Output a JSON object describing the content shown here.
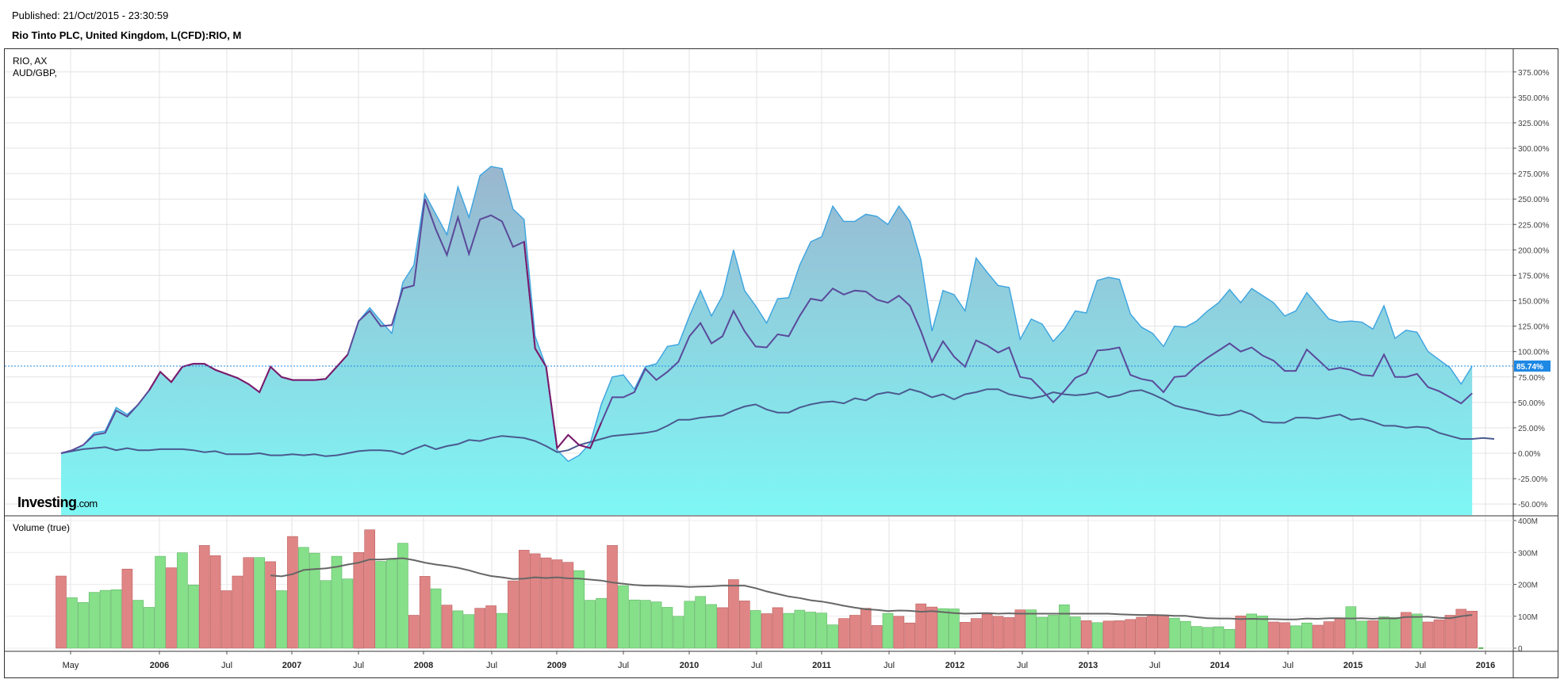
{
  "header": {
    "published": "Published: 21/Oct/2015 - 23:30:59",
    "chart_title": "Rio Tinto PLC, United Kingdom, L(CFD):RIO, M"
  },
  "legend": [
    "RIO, AX",
    "AUD/GBP,"
  ],
  "volume_label": "Volume (true)",
  "logo": {
    "main": "Investing",
    "suffix": ".com"
  },
  "current_value_label": "85.74%",
  "colors": {
    "area_stroke": "#3ba3e0",
    "area_fill_top": "#9ab6cf",
    "area_fill_bottom": "#7ef7f5",
    "line_rio_ax": "#5a4a9a",
    "line_audgbp": "#4a5a90",
    "line_overlap": "#7b1a6b",
    "vol_up": "#86e08a",
    "vol_down": "#e08585",
    "vol_ma": "#666666",
    "current_badge": "#1e88e5"
  },
  "chart_data": [
    {
      "type": "area",
      "title": "Rio Tinto PLC, United Kingdom, L(CFD):RIO, M",
      "ylim": [
        -60,
        395
      ],
      "y_ticks": [
        "375.00%",
        "350.00%",
        "325.00%",
        "300.00%",
        "275.00%",
        "250.00%",
        "225.00%",
        "200.00%",
        "175.00%",
        "150.00%",
        "125.00%",
        "100.00%",
        "75.00%",
        "50.00%",
        "25.00%",
        "0.00%",
        "-25.00%",
        "-50.00%"
      ],
      "x_ticks": [
        {
          "label": "May",
          "year": false
        },
        {
          "label": "2006",
          "year": true
        },
        {
          "label": "Jul",
          "year": false
        },
        {
          "label": "2007",
          "year": true
        },
        {
          "label": "Jul",
          "year": false
        },
        {
          "label": "2008",
          "year": true
        },
        {
          "label": "Jul",
          "year": false
        },
        {
          "label": "2009",
          "year": true
        },
        {
          "label": "Jul",
          "year": false
        },
        {
          "label": "2010",
          "year": true
        },
        {
          "label": "Jul",
          "year": false
        },
        {
          "label": "2011",
          "year": true
        },
        {
          "label": "Jul",
          "year": false
        },
        {
          "label": "2012",
          "year": true
        },
        {
          "label": "Jul",
          "year": false
        },
        {
          "label": "2013",
          "year": true
        },
        {
          "label": "Jul",
          "year": false
        },
        {
          "label": "2014",
          "year": true
        },
        {
          "label": "Jul",
          "year": false
        },
        {
          "label": "2015",
          "year": true
        },
        {
          "label": "Jul",
          "year": false
        },
        {
          "label": "2016",
          "year": true
        }
      ],
      "current_value": 85.74,
      "series": [
        {
          "name": "Rio Tinto PLC, United Kingdom, L(CFD):RIO, M",
          "values": [
            0,
            3,
            8,
            20,
            22,
            45,
            38,
            48,
            62,
            80,
            70,
            85,
            88,
            88,
            82,
            78,
            74,
            68,
            60,
            85,
            75,
            72,
            72,
            72,
            73,
            85,
            97,
            130,
            143,
            130,
            118,
            168,
            185,
            255,
            235,
            215,
            262,
            232,
            273,
            282,
            280,
            240,
            230,
            115,
            85,
            3,
            -8,
            -2,
            10,
            48,
            75,
            77,
            63,
            85,
            88,
            105,
            107,
            135,
            160,
            135,
            155,
            200,
            160,
            145,
            128,
            152,
            153,
            185,
            208,
            213,
            243,
            228,
            228,
            235,
            233,
            225,
            243,
            228,
            190,
            120,
            160,
            156,
            140,
            192,
            178,
            165,
            163,
            112,
            132,
            127,
            110,
            122,
            140,
            138,
            170,
            173,
            171,
            137,
            124,
            118,
            105,
            125,
            124,
            130,
            140,
            148,
            161,
            148,
            162,
            155,
            148,
            135,
            140,
            158,
            145,
            132,
            129,
            130,
            129,
            122,
            145,
            113,
            121,
            119,
            100,
            92,
            84,
            68,
            85.74
          ]
        },
        {
          "name": "RIO, AX",
          "values": [
            0,
            3,
            8,
            18,
            20,
            42,
            36,
            48,
            62,
            80,
            70,
            85,
            88,
            88,
            82,
            78,
            74,
            68,
            60,
            85,
            75,
            72,
            72,
            72,
            73,
            85,
            97,
            130,
            140,
            125,
            126,
            162,
            165,
            250,
            220,
            195,
            232,
            196,
            230,
            234,
            228,
            203,
            208,
            103,
            85,
            5,
            18,
            8,
            5,
            30,
            55,
            55,
            60,
            83,
            72,
            80,
            90,
            115,
            128,
            108,
            115,
            140,
            120,
            105,
            104,
            117,
            115,
            135,
            152,
            150,
            162,
            156,
            160,
            159,
            151,
            148,
            155,
            145,
            120,
            90,
            110,
            95,
            85,
            111,
            106,
            99,
            104,
            75,
            73,
            62,
            50,
            61,
            74,
            79,
            101,
            102,
            104,
            77,
            73,
            71,
            60,
            75,
            76,
            86,
            94,
            101,
            108,
            100,
            104,
            96,
            91,
            81,
            81,
            102,
            92,
            82,
            84,
            82,
            77,
            76,
            97,
            75,
            75,
            78,
            65,
            61,
            55,
            49,
            59
          ]
        },
        {
          "name": "AUD/GBP",
          "values": [
            0,
            2,
            4,
            5,
            6,
            3,
            5,
            3,
            3,
            4,
            4,
            4,
            3,
            1,
            2,
            -1,
            -1,
            -1,
            0,
            -2,
            -2,
            -1,
            -2,
            -1,
            -3,
            -2,
            0,
            2,
            3,
            3,
            2,
            -1,
            4,
            8,
            4,
            7,
            9,
            13,
            12,
            15,
            17,
            16,
            15,
            12,
            7,
            1,
            3,
            8,
            11,
            14,
            17,
            18,
            19,
            20,
            22,
            27,
            33,
            33,
            35,
            36,
            37,
            42,
            46,
            48,
            43,
            40,
            40,
            45,
            48,
            50,
            51,
            49,
            54,
            52,
            58,
            60,
            58,
            63,
            60,
            55,
            58,
            53,
            58,
            60,
            63,
            63,
            58,
            56,
            54,
            56,
            60,
            58,
            57,
            58,
            60,
            55,
            57,
            61,
            62,
            58,
            53,
            47,
            44,
            42,
            39,
            37,
            38,
            42,
            38,
            31,
            30,
            30,
            35,
            35,
            34,
            36,
            38,
            33,
            34,
            31,
            27,
            27,
            25,
            26,
            25,
            20,
            17,
            14,
            14,
            15,
            14
          ]
        }
      ]
    },
    {
      "type": "bar",
      "title": "Volume (true)",
      "ylim": [
        0,
        400
      ],
      "y_unit": "M",
      "y_ticks": [
        "400M",
        "300M",
        "200M",
        "100M",
        "0"
      ],
      "series": [
        {
          "name": "Volume (true)",
          "values": [
            226,
            158,
            143,
            175,
            181,
            183,
            248,
            150,
            128,
            288,
            252,
            299,
            198,
            322,
            290,
            180,
            226,
            284,
            284,
            271,
            180,
            350,
            316,
            298,
            212,
            288,
            217,
            300,
            371,
            272,
            278,
            329,
            103,
            225,
            186,
            135,
            117,
            105,
            125,
            133,
            109,
            211,
            307,
            296,
            283,
            277,
            269,
            243,
            150,
            156,
            322,
            196,
            151,
            150,
            145,
            128,
            100,
            147,
            162,
            137,
            127,
            215,
            148,
            118,
            108,
            127,
            109,
            119,
            113,
            110,
            73,
            93,
            103,
            125,
            71,
            109,
            100,
            79,
            139,
            129,
            124,
            123,
            81,
            93,
            106,
            100,
            96,
            120,
            120,
            97,
            103,
            136,
            98,
            86,
            80,
            85,
            86,
            90,
            97,
            104,
            104,
            94,
            84,
            68,
            65,
            67,
            59,
            101,
            107,
            101,
            82,
            80,
            70,
            79,
            72,
            83,
            92,
            130,
            85,
            86,
            98,
            96,
            112,
            107,
            82,
            89,
            103,
            122,
            116
          ]
        },
        {
          "name": "Volume direction (1 = up, 0 = down)",
          "values": [
            0,
            1,
            1,
            1,
            1,
            1,
            0,
            1,
            1,
            1,
            0,
            1,
            1,
            0,
            0,
            0,
            0,
            0,
            1,
            0,
            1,
            0,
            1,
            1,
            1,
            1,
            1,
            0,
            0,
            1,
            1,
            1,
            0,
            0,
            1,
            0,
            1,
            1,
            0,
            0,
            1,
            0,
            0,
            0,
            0,
            0,
            0,
            1,
            1,
            1,
            0,
            1,
            1,
            1,
            1,
            1,
            1,
            1,
            1,
            1,
            0,
            0,
            0,
            1,
            0,
            0,
            1,
            1,
            1,
            1,
            1,
            0,
            0,
            0,
            0,
            1,
            0,
            0,
            0,
            0,
            1,
            1,
            0,
            0,
            0,
            0,
            0,
            0,
            1,
            1,
            1,
            1,
            1,
            0,
            1,
            0,
            0,
            0,
            0,
            0,
            0,
            1,
            1,
            1,
            1,
            1,
            1,
            0,
            1,
            1,
            0,
            0,
            1,
            1,
            0,
            0,
            0,
            1,
            1,
            0,
            1,
            1,
            0,
            1,
            0,
            0,
            0,
            0,
            0
          ]
        },
        {
          "name": "Volume moving average",
          "values": [
            null,
            null,
            null,
            null,
            null,
            null,
            null,
            null,
            null,
            null,
            null,
            null,
            null,
            null,
            null,
            null,
            null,
            null,
            null,
            null,
            null,
            null,
            null,
            null,
            null,
            null,
            null,
            null,
            null,
            null,
            null,
            null,
            null,
            null,
            null,
            null,
            null,
            null,
            null,
            null,
            null,
            null,
            null,
            null,
            null,
            null,
            null,
            null,
            null,
            null,
            null,
            null,
            null,
            null,
            null,
            null,
            null,
            null,
            null,
            null,
            null,
            null,
            null,
            null,
            null,
            null,
            null,
            null,
            null,
            null,
            null,
            null,
            null,
            null,
            null,
            null,
            null,
            null,
            null,
            null,
            null,
            null,
            null,
            null,
            null,
            null,
            null,
            null,
            null,
            null,
            null,
            null,
            null,
            null,
            null,
            null,
            null,
            null,
            null,
            null,
            null,
            null,
            null,
            null,
            null,
            null,
            null,
            null,
            null,
            null,
            null,
            null,
            null,
            null,
            null,
            null,
            null,
            null,
            null,
            null,
            null,
            null,
            null,
            null,
            null,
            null,
            null,
            null,
            null
          ]
        },
        {
          "name": "Volume moving average",
          "values": [
            null,
            null,
            null,
            null,
            null,
            null,
            null,
            null,
            null,
            null,
            null,
            null,
            null,
            null,
            null,
            null,
            null,
            null,
            null,
            228,
            225,
            232,
            245,
            248,
            250,
            255,
            262,
            268,
            278,
            278,
            280,
            282,
            276,
            268,
            262,
            258,
            252,
            244,
            234,
            226,
            222,
            217,
            218,
            222,
            220,
            222,
            219,
            218,
            215,
            212,
            206,
            202,
            198,
            196,
            196,
            195,
            194,
            192,
            193,
            194,
            196,
            196,
            196,
            188,
            178,
            170,
            162,
            157,
            150,
            146,
            140,
            133,
            127,
            122,
            120,
            116,
            118,
            117,
            114,
            116,
            113,
            110,
            108,
            109,
            110,
            108,
            109,
            108,
            108,
            108,
            108,
            108,
            108,
            108,
            108,
            108,
            106,
            105,
            104,
            104,
            103,
            101,
            101,
            97,
            94,
            93,
            93,
            91,
            92,
            91,
            91,
            90,
            90,
            93,
            92,
            94,
            94,
            93,
            94,
            92,
            94,
            93,
            98,
            98,
            99,
            95,
            94,
            100,
            104
          ]
        }
      ]
    }
  ]
}
